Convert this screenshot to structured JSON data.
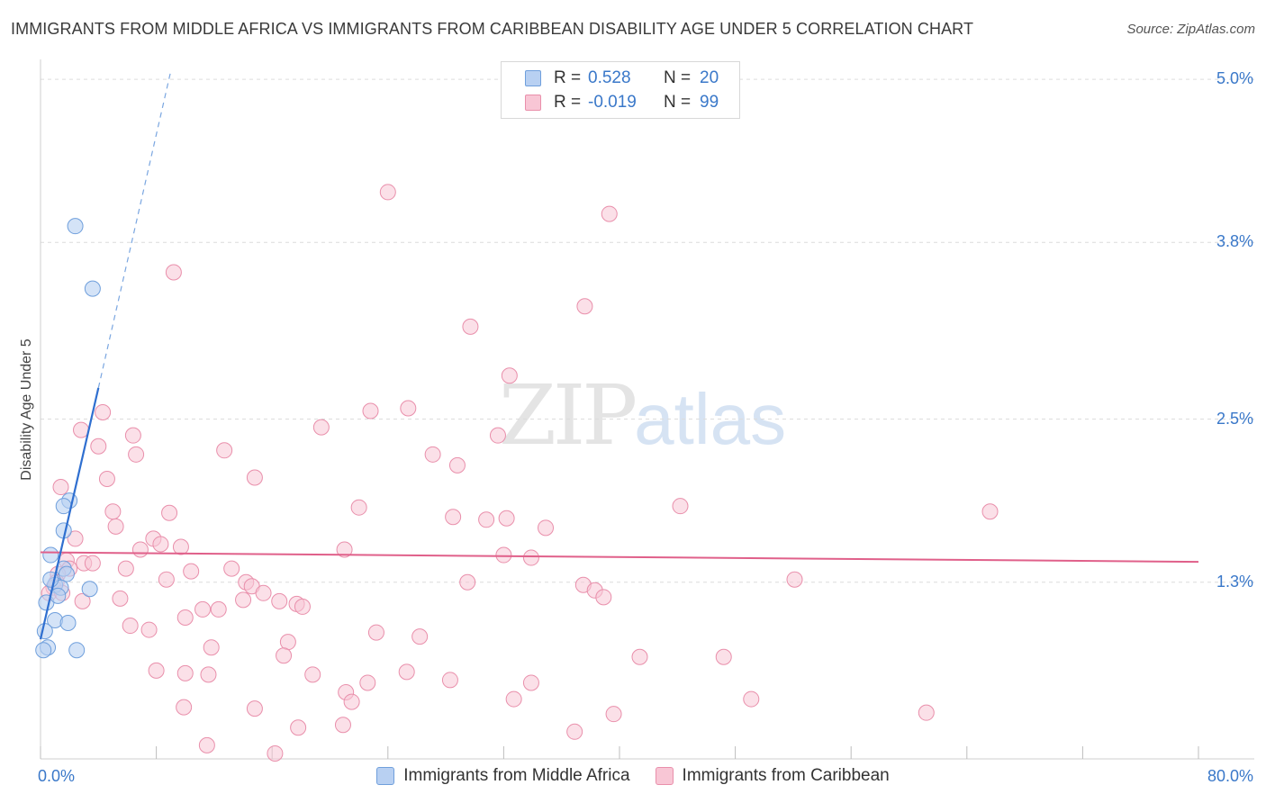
{
  "title": "IMMIGRANTS FROM MIDDLE AFRICA VS IMMIGRANTS FROM CARIBBEAN DISABILITY AGE UNDER 5 CORRELATION CHART",
  "source": "Source: ZipAtlas.com",
  "watermark": {
    "zip": "ZIP",
    "atlas": "atlas"
  },
  "legend_stats": {
    "series1": {
      "r_label": "R =",
      "r_value": "0.528",
      "n_label": "N =",
      "n_value": "20"
    },
    "series2": {
      "r_label": "R =",
      "r_value": "-0.019",
      "n_label": "N =",
      "n_value": "99"
    }
  },
  "colors": {
    "blue_fill": "#b8d0f2",
    "blue_stroke": "#6f9fdc",
    "blue_line": "#2f6fd0",
    "pink_fill": "#f8c6d5",
    "pink_stroke": "#e98fab",
    "pink_line": "#e0608a",
    "grid": "#dcdcdc",
    "axis_text": "#3a78c9"
  },
  "chart_data": {
    "type": "scatter",
    "title": "IMMIGRANTS FROM MIDDLE AFRICA VS IMMIGRANTS FROM CARIBBEAN DISABILITY AGE UNDER 5 CORRELATION CHART",
    "xlabel": "",
    "ylabel": "Disability Age Under 5",
    "xlim": [
      0,
      80
    ],
    "ylim": [
      0,
      5.12
    ],
    "x_tick_labels": [
      "0.0%",
      "80.0%"
    ],
    "y_ticks": [
      1.3,
      2.5,
      3.8,
      5.0
    ],
    "y_tick_labels": [
      "1.3%",
      "2.5%",
      "3.8%",
      "5.0%"
    ],
    "grid": true,
    "legend_position": "bottom",
    "series": [
      {
        "name": "Immigrants from Middle Africa",
        "color": "#b8d0f2",
        "r": 0.528,
        "n": 20,
        "points": [
          [
            2.4,
            3.92
          ],
          [
            3.6,
            3.46
          ],
          [
            2.0,
            1.9
          ],
          [
            1.6,
            1.86
          ],
          [
            1.6,
            1.68
          ],
          [
            0.7,
            1.5
          ],
          [
            1.6,
            1.4
          ],
          [
            1.8,
            1.36
          ],
          [
            1.0,
            1.28
          ],
          [
            1.4,
            1.26
          ],
          [
            3.4,
            1.25
          ],
          [
            0.4,
            1.15
          ],
          [
            1.0,
            1.02
          ],
          [
            1.9,
            1.0
          ],
          [
            0.3,
            0.94
          ],
          [
            0.5,
            0.82
          ],
          [
            0.2,
            0.8
          ],
          [
            2.5,
            0.8
          ],
          [
            0.7,
            1.32
          ],
          [
            1.2,
            1.2
          ]
        ],
        "trend": {
          "x0": 0.0,
          "y0": 0.88,
          "x1": 4.0,
          "y1": 2.73,
          "dashed_to_x": 9.0,
          "dashed_to_y": 5.06
        }
      },
      {
        "name": "Immigrants from Caribbean",
        "color": "#f8c6d5",
        "r": -0.019,
        "n": 99,
        "points": [
          [
            24.0,
            4.17
          ],
          [
            39.3,
            4.01
          ],
          [
            9.2,
            3.58
          ],
          [
            37.6,
            3.33
          ],
          [
            29.7,
            3.18
          ],
          [
            32.4,
            2.82
          ],
          [
            4.3,
            2.55
          ],
          [
            22.8,
            2.56
          ],
          [
            25.4,
            2.58
          ],
          [
            2.8,
            2.42
          ],
          [
            6.4,
            2.38
          ],
          [
            19.4,
            2.44
          ],
          [
            31.6,
            2.38
          ],
          [
            4.0,
            2.3
          ],
          [
            6.6,
            2.24
          ],
          [
            12.7,
            2.27
          ],
          [
            27.1,
            2.24
          ],
          [
            28.8,
            2.16
          ],
          [
            14.8,
            2.07
          ],
          [
            4.6,
            2.06
          ],
          [
            1.4,
            2.0
          ],
          [
            22.0,
            1.85
          ],
          [
            44.2,
            1.86
          ],
          [
            65.6,
            1.82
          ],
          [
            5.0,
            1.82
          ],
          [
            8.9,
            1.81
          ],
          [
            28.5,
            1.78
          ],
          [
            30.8,
            1.76
          ],
          [
            32.2,
            1.77
          ],
          [
            5.2,
            1.71
          ],
          [
            34.9,
            1.7
          ],
          [
            2.4,
            1.62
          ],
          [
            7.8,
            1.62
          ],
          [
            8.3,
            1.58
          ],
          [
            9.7,
            1.56
          ],
          [
            6.9,
            1.54
          ],
          [
            21.0,
            1.54
          ],
          [
            32.0,
            1.5
          ],
          [
            33.9,
            1.48
          ],
          [
            3.0,
            1.44
          ],
          [
            3.6,
            1.44
          ],
          [
            1.8,
            1.46
          ],
          [
            5.9,
            1.4
          ],
          [
            13.2,
            1.4
          ],
          [
            10.4,
            1.38
          ],
          [
            8.7,
            1.32
          ],
          [
            2.0,
            1.4
          ],
          [
            1.2,
            1.36
          ],
          [
            14.2,
            1.3
          ],
          [
            14.6,
            1.27
          ],
          [
            15.4,
            1.22
          ],
          [
            29.5,
            1.3
          ],
          [
            37.5,
            1.28
          ],
          [
            38.3,
            1.24
          ],
          [
            38.9,
            1.19
          ],
          [
            52.1,
            1.32
          ],
          [
            1.1,
            1.3
          ],
          [
            0.9,
            1.26
          ],
          [
            0.6,
            1.22
          ],
          [
            5.5,
            1.18
          ],
          [
            1.5,
            1.22
          ],
          [
            2.9,
            1.16
          ],
          [
            14.0,
            1.17
          ],
          [
            11.2,
            1.1
          ],
          [
            12.3,
            1.1
          ],
          [
            16.5,
            1.16
          ],
          [
            17.7,
            1.14
          ],
          [
            18.1,
            1.12
          ],
          [
            10.0,
            1.04
          ],
          [
            6.2,
            0.98
          ],
          [
            7.5,
            0.95
          ],
          [
            23.2,
            0.93
          ],
          [
            26.2,
            0.9
          ],
          [
            17.1,
            0.86
          ],
          [
            11.8,
            0.82
          ],
          [
            16.8,
            0.76
          ],
          [
            41.4,
            0.75
          ],
          [
            47.2,
            0.75
          ],
          [
            8.0,
            0.65
          ],
          [
            10.0,
            0.63
          ],
          [
            11.6,
            0.62
          ],
          [
            18.8,
            0.62
          ],
          [
            25.3,
            0.64
          ],
          [
            28.3,
            0.58
          ],
          [
            22.6,
            0.56
          ],
          [
            33.9,
            0.56
          ],
          [
            21.1,
            0.49
          ],
          [
            21.5,
            0.42
          ],
          [
            32.7,
            0.44
          ],
          [
            49.1,
            0.44
          ],
          [
            9.9,
            0.38
          ],
          [
            14.8,
            0.37
          ],
          [
            39.6,
            0.33
          ],
          [
            61.2,
            0.34
          ],
          [
            17.8,
            0.23
          ],
          [
            20.9,
            0.25
          ],
          [
            36.9,
            0.2
          ],
          [
            11.5,
            0.1
          ],
          [
            16.2,
            0.04
          ]
        ],
        "trend": {
          "x0": 0.0,
          "y0": 1.52,
          "x1": 80.0,
          "y1": 1.45
        }
      }
    ]
  },
  "legend_bottom": [
    {
      "label": "Immigrants from Middle Africa"
    },
    {
      "label": "Immigrants from Caribbean"
    }
  ]
}
